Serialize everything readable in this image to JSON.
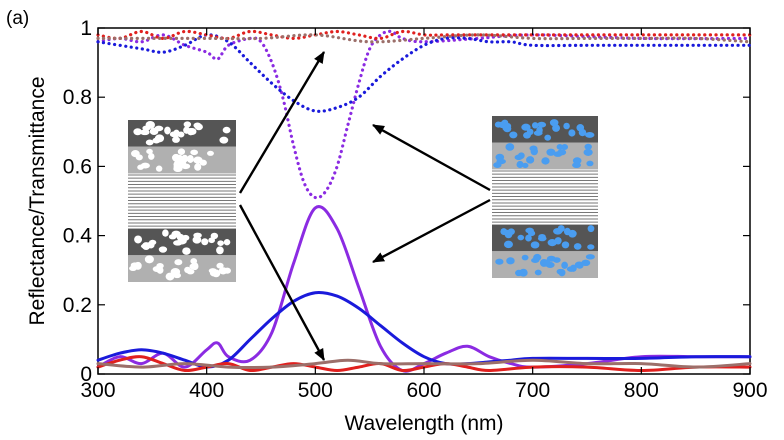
{
  "panel_label": "(a)",
  "chart_data": {
    "type": "line",
    "title": "",
    "xlabel": "Wavelength (nm)",
    "ylabel": "Reflectance/Transmittance",
    "xlim": [
      300,
      900
    ],
    "ylim": [
      0,
      1
    ],
    "xticks": [
      300,
      400,
      500,
      600,
      700,
      800,
      900
    ],
    "yticks": [
      0,
      0.2,
      0.4,
      0.6,
      0.8,
      1
    ],
    "ytick_labels": [
      "0",
      "0.2",
      "0.4",
      "0.6",
      "0.8",
      "1"
    ],
    "grid": false,
    "legend": "none",
    "series": [
      {
        "style": "solid",
        "color": "#8b2be2",
        "x": [
          300,
          320,
          340,
          360,
          380,
          400,
          410,
          420,
          440,
          460,
          480,
          500,
          520,
          540,
          560,
          580,
          600,
          620,
          640,
          660,
          680,
          700,
          750,
          800,
          850,
          900
        ],
        "y": [
          0.02,
          0.05,
          0.03,
          0.06,
          0.02,
          0.07,
          0.09,
          0.05,
          0.04,
          0.12,
          0.32,
          0.48,
          0.42,
          0.25,
          0.08,
          0.01,
          0.03,
          0.06,
          0.08,
          0.05,
          0.03,
          0.02,
          0.03,
          0.05,
          0.05,
          0.05
        ]
      },
      {
        "style": "solid",
        "color": "#1a1adb",
        "x": [
          300,
          320,
          340,
          360,
          380,
          400,
          420,
          440,
          460,
          480,
          500,
          520,
          540,
          560,
          580,
          600,
          620,
          640,
          660,
          680,
          700,
          750,
          800,
          850,
          900
        ],
        "y": [
          0.04,
          0.06,
          0.07,
          0.06,
          0.04,
          0.02,
          0.04,
          0.1,
          0.16,
          0.21,
          0.235,
          0.225,
          0.19,
          0.14,
          0.09,
          0.05,
          0.03,
          0.03,
          0.035,
          0.04,
          0.045,
          0.045,
          0.045,
          0.05,
          0.05
        ]
      },
      {
        "style": "solid",
        "color": "#e0201e",
        "x": [
          300,
          320,
          340,
          360,
          380,
          400,
          420,
          440,
          460,
          480,
          500,
          520,
          540,
          560,
          580,
          600,
          620,
          640,
          660,
          700,
          750,
          800,
          850,
          900
        ],
        "y": [
          0.02,
          0.04,
          0.05,
          0.03,
          0.01,
          0.02,
          0.03,
          0.01,
          0.02,
          0.03,
          0.02,
          0.01,
          0.02,
          0.03,
          0.01,
          0.02,
          0.03,
          0.02,
          0.01,
          0.02,
          0.02,
          0.01,
          0.02,
          0.02
        ]
      },
      {
        "style": "solid",
        "color": "#9c6f6a",
        "x": [
          300,
          340,
          380,
          420,
          460,
          500,
          530,
          560,
          600,
          650,
          700,
          750,
          800,
          850,
          900
        ],
        "y": [
          0.03,
          0.02,
          0.03,
          0.02,
          0.02,
          0.03,
          0.04,
          0.03,
          0.03,
          0.03,
          0.04,
          0.03,
          0.03,
          0.02,
          0.03
        ]
      },
      {
        "style": "dotted",
        "color": "#8b2be2",
        "x": [
          300,
          320,
          340,
          360,
          380,
          400,
          410,
          420,
          440,
          450,
          460,
          470,
          480,
          490,
          500,
          510,
          520,
          530,
          540,
          550,
          560,
          570,
          580,
          600,
          650,
          700,
          800,
          900
        ],
        "y": [
          0.96,
          0.97,
          0.96,
          0.98,
          0.95,
          0.93,
          0.91,
          0.95,
          0.97,
          0.96,
          0.9,
          0.8,
          0.66,
          0.55,
          0.51,
          0.53,
          0.6,
          0.72,
          0.84,
          0.94,
          0.98,
          0.99,
          0.97,
          0.96,
          0.97,
          0.98,
          0.97,
          0.97
        ]
      },
      {
        "style": "dotted",
        "color": "#1a1adb",
        "x": [
          300,
          340,
          360,
          380,
          400,
          420,
          440,
          460,
          480,
          500,
          520,
          540,
          560,
          580,
          600,
          620,
          640,
          660,
          680,
          700,
          750,
          800,
          850,
          900
        ],
        "y": [
          0.96,
          0.94,
          0.93,
          0.95,
          0.98,
          0.96,
          0.9,
          0.84,
          0.79,
          0.76,
          0.77,
          0.8,
          0.86,
          0.91,
          0.95,
          0.97,
          0.97,
          0.96,
          0.96,
          0.95,
          0.95,
          0.95,
          0.95,
          0.95
        ]
      },
      {
        "style": "dotted",
        "color": "#e0201e",
        "x": [
          300,
          320,
          340,
          360,
          380,
          400,
          420,
          440,
          460,
          480,
          500,
          520,
          540,
          560,
          580,
          600,
          620,
          650,
          700,
          750,
          800,
          850,
          900
        ],
        "y": [
          0.98,
          0.97,
          0.99,
          0.97,
          0.99,
          0.98,
          0.97,
          0.99,
          0.98,
          0.97,
          0.98,
          0.99,
          0.98,
          0.97,
          0.99,
          0.98,
          0.98,
          0.98,
          0.98,
          0.98,
          0.98,
          0.98,
          0.98
        ]
      },
      {
        "style": "dotted",
        "color": "#9c6f6a",
        "x": [
          300,
          350,
          400,
          450,
          500,
          550,
          600,
          650,
          700,
          750,
          800,
          850,
          900
        ],
        "y": [
          0.97,
          0.97,
          0.97,
          0.97,
          0.98,
          0.96,
          0.97,
          0.98,
          0.97,
          0.97,
          0.97,
          0.97,
          0.96
        ]
      }
    ]
  },
  "insets": [
    {
      "name": "white-particle-inset",
      "particle_color": "#ffffff"
    },
    {
      "name": "blue-particle-inset",
      "particle_color": "#4a9df0"
    }
  ]
}
